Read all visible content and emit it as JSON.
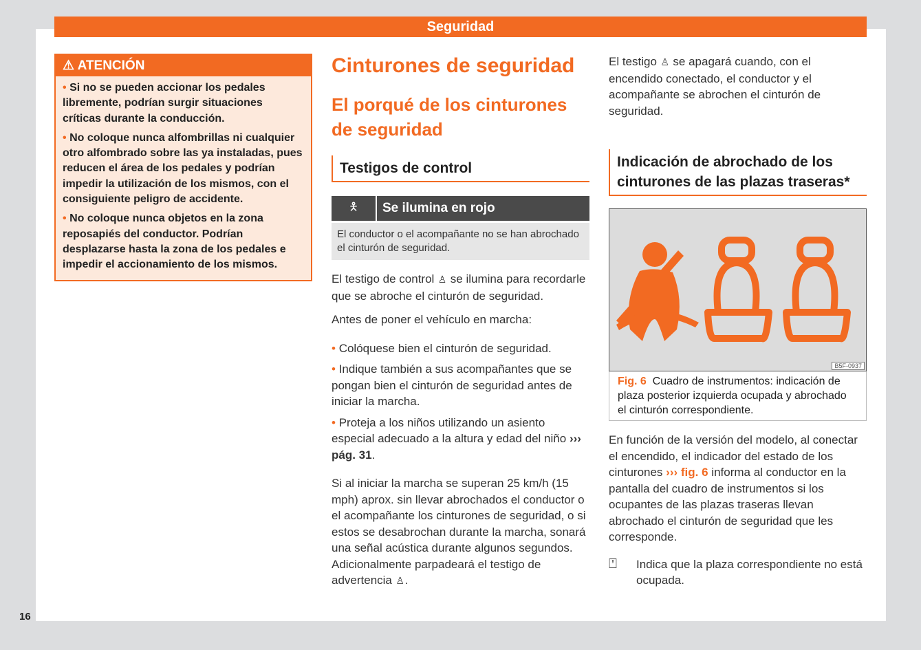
{
  "header": {
    "title": "Seguridad"
  },
  "page_number": "16",
  "warning": {
    "title": "ATENCIÓN",
    "icon": "warning-triangle-icon",
    "items": [
      "Si no se pueden accionar los pedales libremente, podrían surgir situaciones críticas durante la conducción.",
      "No coloque nunca alfombrillas ni cualquier otro alfombrado sobre las ya instaladas, pues reducen el área de los pedales y podrían impedir la utilización de los mismos, con el consiguiente peligro de accidente.",
      "No coloque nunca objetos en la zona reposapiés del conductor. Podrían desplazarse hasta la zona de los pedales e impedir el accionamiento de los mismos."
    ]
  },
  "middle": {
    "title": "Cinturones de seguridad",
    "subtitle": "El porqué de los cinturones de seguridad",
    "section": "Testigos de control",
    "table": {
      "header": "Se ilumina en rojo",
      "icon": "seatbelt-warning-icon",
      "text": "El conductor o el acompañante no se han abrochado el cinturón de seguridad."
    },
    "p1": {
      "a": "El testigo de control",
      "b": "se ilumina para recordarle que se abroche el cinturón de seguridad."
    },
    "p2": "Antes de poner el vehículo en marcha:",
    "bullets": [
      "Colóquese bien el cinturón de seguridad.",
      "Indique también a sus acompañantes que se pongan bien el cinturón de seguridad antes de iniciar la marcha.",
      "Proteja a los niños utilizando un asiento especial adecuado a la altura y edad del niño"
    ],
    "bullet_link": "››› pág. 31",
    "p3": "Si al iniciar la marcha se superan 25 km/h (15 mph) aprox. sin llevar abrochados el conductor o el acompañante los cinturones de seguridad, o si estos se desabrochan durante la marcha, sonará una señal acústica durante algunos segundos. Adicionalmente parpadeará el testigo de advertencia"
  },
  "right": {
    "p1": {
      "a": "El testigo",
      "b": "se apagará cuando, con el encendido conectado, el conductor y el acompañante se abrochen el cinturón de seguridad."
    },
    "section": "Indicación de abrochado de los cinturones de las plazas traseras*",
    "figure": {
      "code": "B5F-0937",
      "label": "Fig. 6",
      "caption": "Cuadro de instrumentos: indicación de plaza posterior izquierda ocupada y abrochado el cinturón correspondiente.",
      "color": "#f26a22"
    },
    "p2": {
      "a": "En función de la versión del modelo, al conectar el encendido, el indicador del estado de los cinturones",
      "link": "››› fig. 6",
      "b": "informa al conductor en la pantalla del cuadro de instrumentos si los ocupantes de las plazas traseras llevan abrochado el cinturón de seguridad que les corresponde."
    },
    "legend": {
      "icon": "empty-seat-icon",
      "text": "Indica que la plaza correspondiente no está ocupada."
    }
  }
}
